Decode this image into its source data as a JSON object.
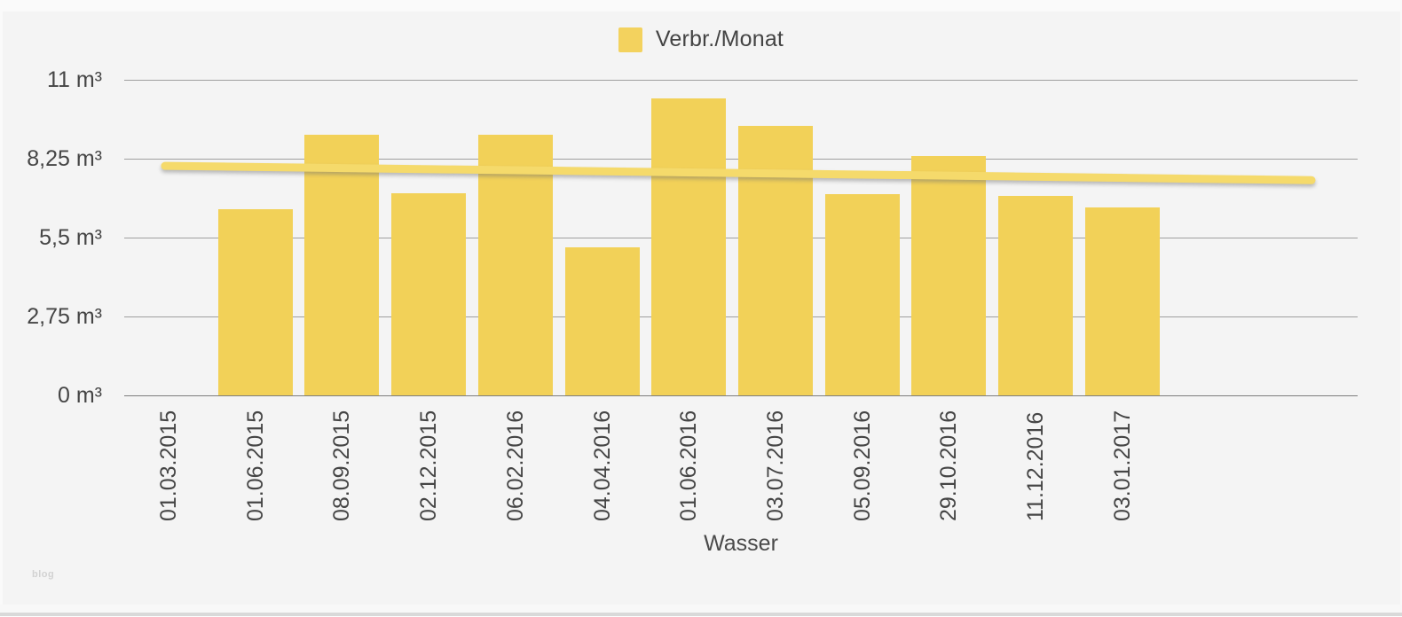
{
  "watermark": {
    "text": "blog"
  },
  "colors": {
    "background": "#F4F4F4",
    "bar": "#F2D158",
    "legend_swatch": "#F3D25E",
    "trend": "#F5DA6B",
    "grid": "#8F8F8F",
    "text": "#454545"
  },
  "chart_data": {
    "type": "bar",
    "title": "",
    "xlabel": "Wasser",
    "ylabel": "",
    "unit": "m³",
    "grid": true,
    "legend_position": "top-center",
    "ylim": [
      0,
      11
    ],
    "categories": [
      "01.03.2015",
      "01.06.2015",
      "08.09.2015",
      "02.12.2015",
      "06.02.2016",
      "04.04.2016",
      "01.06.2016",
      "03.07.2016",
      "05.09.2016",
      "29.10.2016",
      "11.12.2016",
      "03.01.2017"
    ],
    "series": [
      {
        "name": "Verbr./Monat",
        "color": "#F2D158",
        "values": [
          0,
          6.5,
          9.1,
          7.05,
          9.1,
          5.15,
          10.35,
          9.4,
          7.0,
          8.35,
          6.95,
          6.55
        ]
      }
    ],
    "y_ticks": [
      {
        "value": 0,
        "label": "0 m³"
      },
      {
        "value": 2.75,
        "label": "2,75 m³"
      },
      {
        "value": 5.5,
        "label": "5,5 m³"
      },
      {
        "value": 8.25,
        "label": "8,25 m³"
      },
      {
        "value": 11,
        "label": "11 m³"
      }
    ],
    "trendline": {
      "start_value": 8.0,
      "end_value": 7.5,
      "color": "#F5DA6B"
    }
  }
}
